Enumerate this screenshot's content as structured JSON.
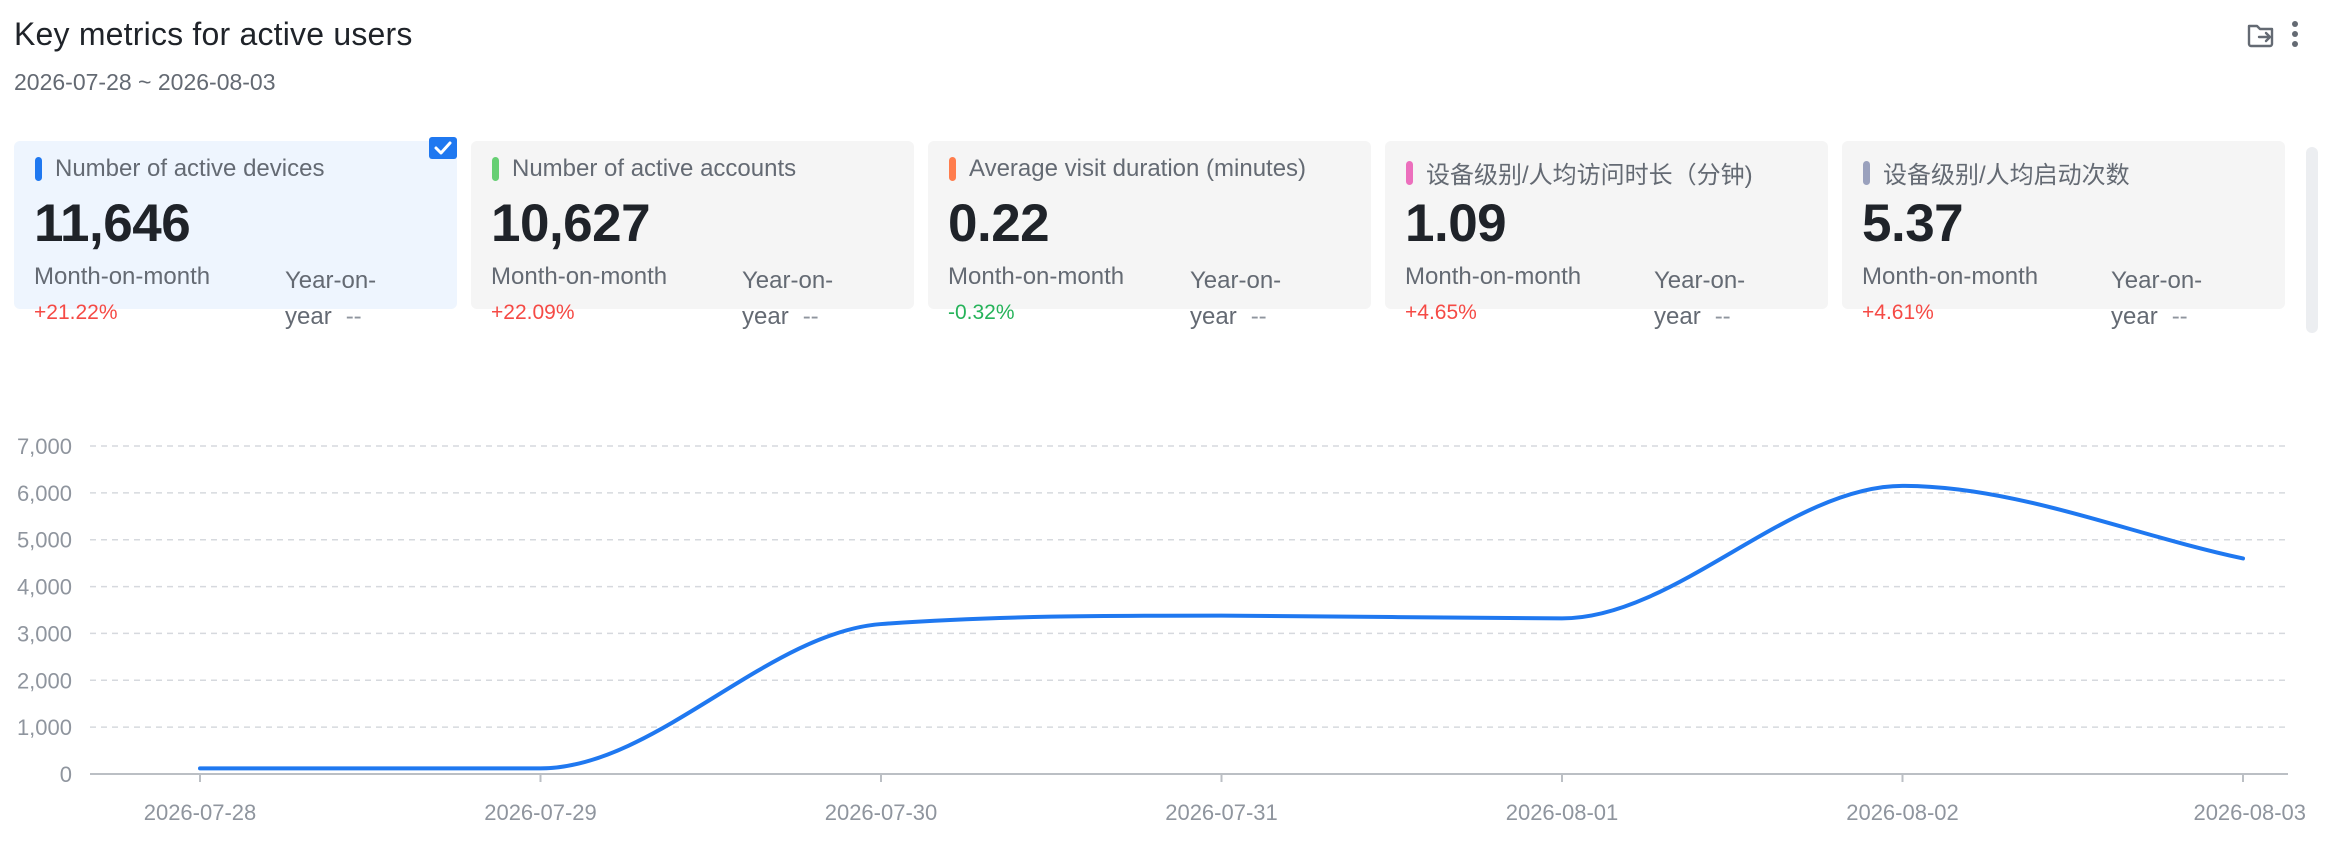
{
  "header": {
    "title": "Key metrics for active users",
    "date_range": "2026-07-28 ~ 2026-08-03"
  },
  "toolbar": {
    "icons": [
      "export-icon",
      "more-vertical-icon"
    ]
  },
  "cards": [
    {
      "label": "Number of active devices",
      "color": "#1f78f0",
      "value": "11,646",
      "mom_label": "Month-on-month",
      "mom_value": "+21.22%",
      "mom_color": "#f54a45",
      "yoy_label": "Year-on-year",
      "yoy_value": "--",
      "selected": true
    },
    {
      "label": "Number of active accounts",
      "color": "#66cf73",
      "value": "10,627",
      "mom_label": "Month-on-month",
      "mom_value": "+22.09%",
      "mom_color": "#f54a45",
      "yoy_label": "Year-on-year",
      "yoy_value": "--",
      "selected": false
    },
    {
      "label": "Average visit duration (minutes)",
      "color": "#ff7d4d",
      "value": "0.22",
      "mom_label": "Month-on-month",
      "mom_value": "-0.32%",
      "mom_color": "#26b35a",
      "yoy_label": "Year-on-year",
      "yoy_value": "--",
      "selected": false
    },
    {
      "label": "设备级别/人均访问时长（分钟)",
      "color": "#ec6fbd",
      "value": "1.09",
      "mom_label": "Month-on-month",
      "mom_value": "+4.65%",
      "mom_color": "#f54a45",
      "yoy_label": "Year-on-year",
      "yoy_value": "--",
      "selected": false
    },
    {
      "label": "设备级别/人均启动次数",
      "color": "#9aa1bd",
      "value": "5.37",
      "mom_label": "Month-on-month",
      "mom_value": "+4.61%",
      "mom_color": "#f54a45",
      "yoy_label": "Year-on-year",
      "yoy_value": "--",
      "selected": false
    }
  ],
  "chart_data": {
    "type": "line",
    "title": "",
    "xlabel": "",
    "ylabel": "",
    "x": [
      "2026-07-28",
      "2026-07-29",
      "2026-07-30",
      "2026-07-31",
      "2026-08-01",
      "2026-08-02",
      "2026-08-03"
    ],
    "yticks": [
      "0",
      "1,000",
      "2,000",
      "3,000",
      "4,000",
      "5,000",
      "6,000",
      "7,000"
    ],
    "ylim": [
      0,
      7000
    ],
    "grid": true,
    "series": [
      {
        "values": [
          120,
          120,
          3200,
          3380,
          3320,
          6150,
          4600
        ],
        "color": "#1f78f0"
      }
    ]
  }
}
